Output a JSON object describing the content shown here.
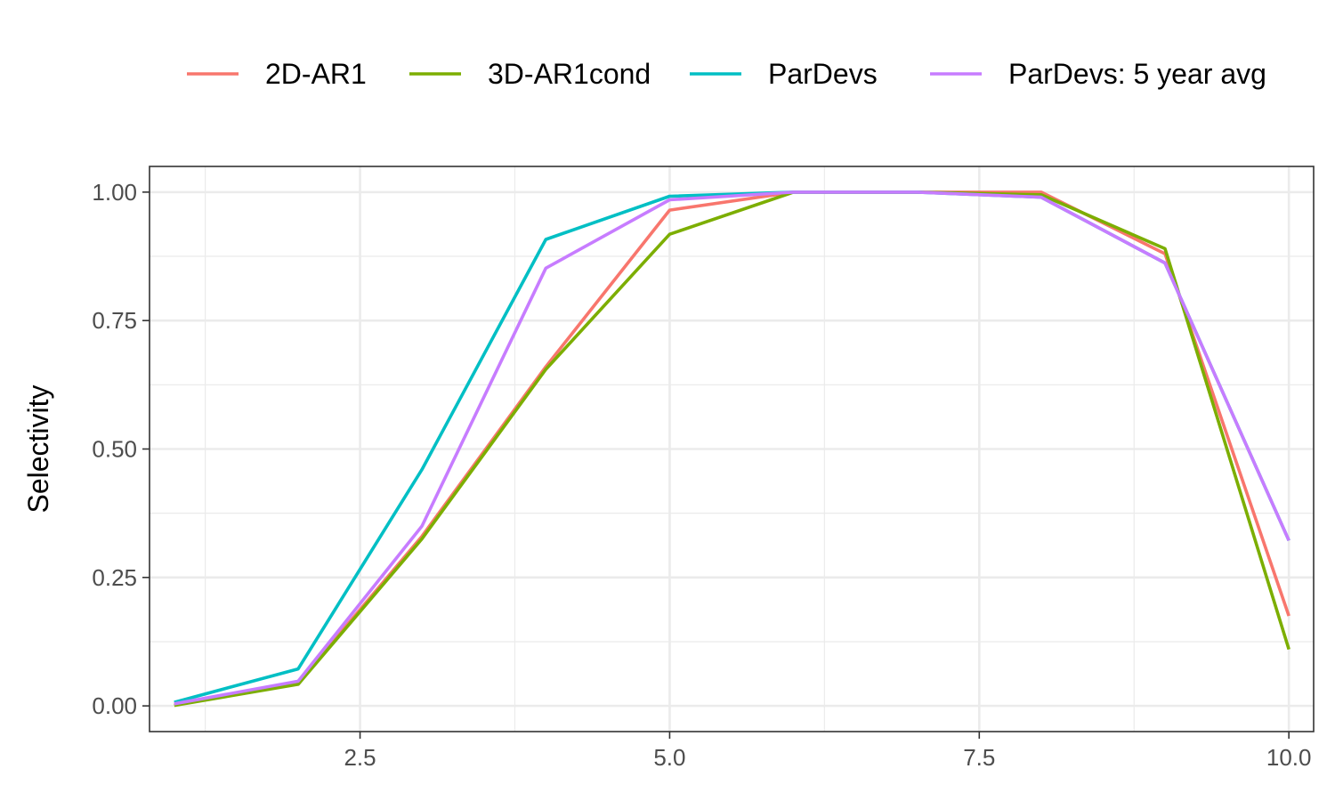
{
  "chart_data": {
    "type": "line",
    "title": "",
    "xlabel": "",
    "ylabel": "Selectivity",
    "xlim": [
      0.8,
      10.2
    ],
    "ylim": [
      -0.05,
      1.05
    ],
    "x_ticks": [
      2.5,
      5.0,
      7.5,
      10.0
    ],
    "x_tick_labels": [
      "2.5",
      "5.0",
      "7.5",
      "10.0"
    ],
    "y_ticks": [
      0,
      0.25,
      0.5,
      0.75,
      1.0
    ],
    "y_tick_labels": [
      "0.00",
      "0.25",
      "0.50",
      "0.75",
      "1.00"
    ],
    "grid": true,
    "legend_position": "top",
    "x": [
      1,
      2,
      3,
      4,
      5,
      6,
      7,
      8,
      9,
      10
    ],
    "series": [
      {
        "name": "2D-AR1",
        "color": "#F8766D",
        "values": [
          0.002,
          0.045,
          0.33,
          0.66,
          0.965,
          1.0,
          1.0,
          1.0,
          0.88,
          0.175
        ]
      },
      {
        "name": "3D-AR1cond",
        "color": "#7CAE00",
        "values": [
          0.001,
          0.042,
          0.325,
          0.655,
          0.918,
          1.0,
          1.0,
          0.995,
          0.89,
          0.11
        ]
      },
      {
        "name": "ParDevs",
        "color": "#00BFC4",
        "values": [
          0.007,
          0.072,
          0.46,
          0.908,
          0.992,
          1.0,
          1.0,
          0.99,
          0.862,
          0.322
        ]
      },
      {
        "name": "ParDevs: 5 year avg",
        "color": "#C77CFF",
        "values": [
          0.004,
          0.048,
          0.35,
          0.852,
          0.985,
          1.0,
          1.0,
          0.99,
          0.862,
          0.322
        ]
      }
    ]
  }
}
